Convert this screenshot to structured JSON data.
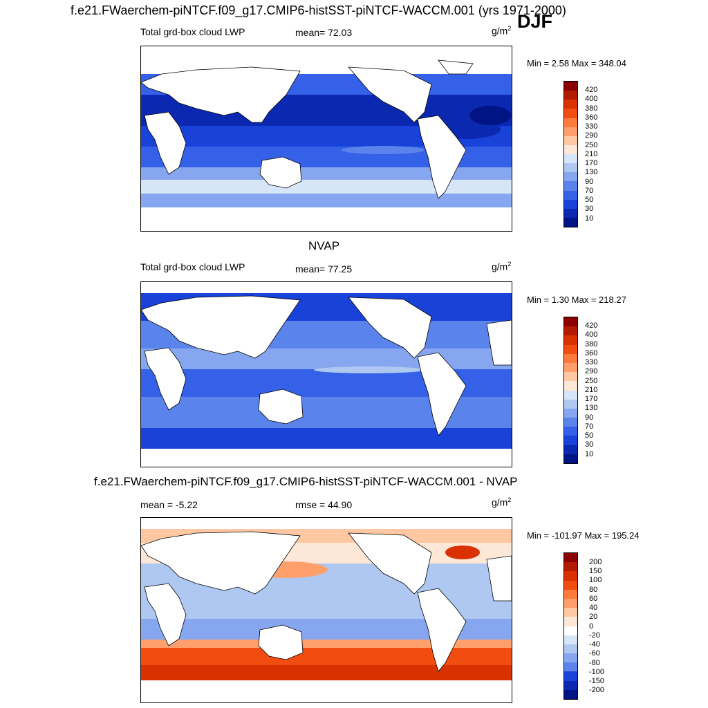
{
  "header": {
    "title": "f.e21.FWaerchem-piNTCF.f09_g17.CMIP6-histSST-piNTCF-WACCM.001 (yrs 1971-2000)",
    "season": "DJF"
  },
  "panels": [
    {
      "label": "Total grd-box cloud LWP",
      "stat": "mean=  72.03",
      "units_base": "g/m",
      "units_exp": "2",
      "minmax": "Min =   2.58 Max = 348.04",
      "colorbar": {
        "labels": [
          "420",
          "400",
          "380",
          "360",
          "330",
          "290",
          "250",
          "210",
          "170",
          "130",
          "90",
          "70",
          "50",
          "30",
          "10"
        ],
        "colors": [
          "#8b0000",
          "#b31b00",
          "#d93100",
          "#f24d11",
          "#ff7a3d",
          "#ff9f6b",
          "#ffc8a3",
          "#fde8d8",
          "#d6e6f8",
          "#aec8f2",
          "#86a6f0",
          "#5b83ec",
          "#3561e8",
          "#1842d8",
          "#0a28b0",
          "#001485"
        ]
      }
    },
    {
      "title": "NVAP",
      "label": "Total grd-box cloud LWP",
      "stat": "mean=  77.25",
      "units_base": "g/m",
      "units_exp": "2",
      "minmax": "Min =   1.30 Max = 218.27",
      "colorbar": {
        "labels": [
          "420",
          "400",
          "380",
          "360",
          "330",
          "290",
          "250",
          "210",
          "170",
          "130",
          "90",
          "70",
          "50",
          "30",
          "10"
        ],
        "colors": [
          "#8b0000",
          "#b31b00",
          "#d93100",
          "#f24d11",
          "#ff7a3d",
          "#ff9f6b",
          "#ffc8a3",
          "#fde8d8",
          "#d6e6f8",
          "#aec8f2",
          "#86a6f0",
          "#5b83ec",
          "#3561e8",
          "#1842d8",
          "#0a28b0",
          "#001485"
        ]
      }
    },
    {
      "title": "f.e21.FWaerchem-piNTCF.f09_g17.CMIP6-histSST-piNTCF-WACCM.001 - NVAP",
      "label": "mean =  -5.22",
      "stat": "rmse =  44.90",
      "units_base": "g/m",
      "units_exp": "2",
      "minmax": "Min = -101.97 Max = 195.24",
      "colorbar": {
        "labels": [
          "200",
          "150",
          "100",
          "80",
          "60",
          "40",
          "20",
          "0",
          "-20",
          "-40",
          "-60",
          "-80",
          "-100",
          "-150",
          "-200"
        ],
        "colors": [
          "#8b0000",
          "#b31b00",
          "#d93100",
          "#f24d11",
          "#ff7a3d",
          "#ff9f6b",
          "#ffc8a3",
          "#fde8d8",
          "#ffffff",
          "#d6e6f8",
          "#aec8f2",
          "#86a6f0",
          "#5b83ec",
          "#1842d8",
          "#0a28b0",
          "#001485"
        ]
      }
    }
  ]
}
